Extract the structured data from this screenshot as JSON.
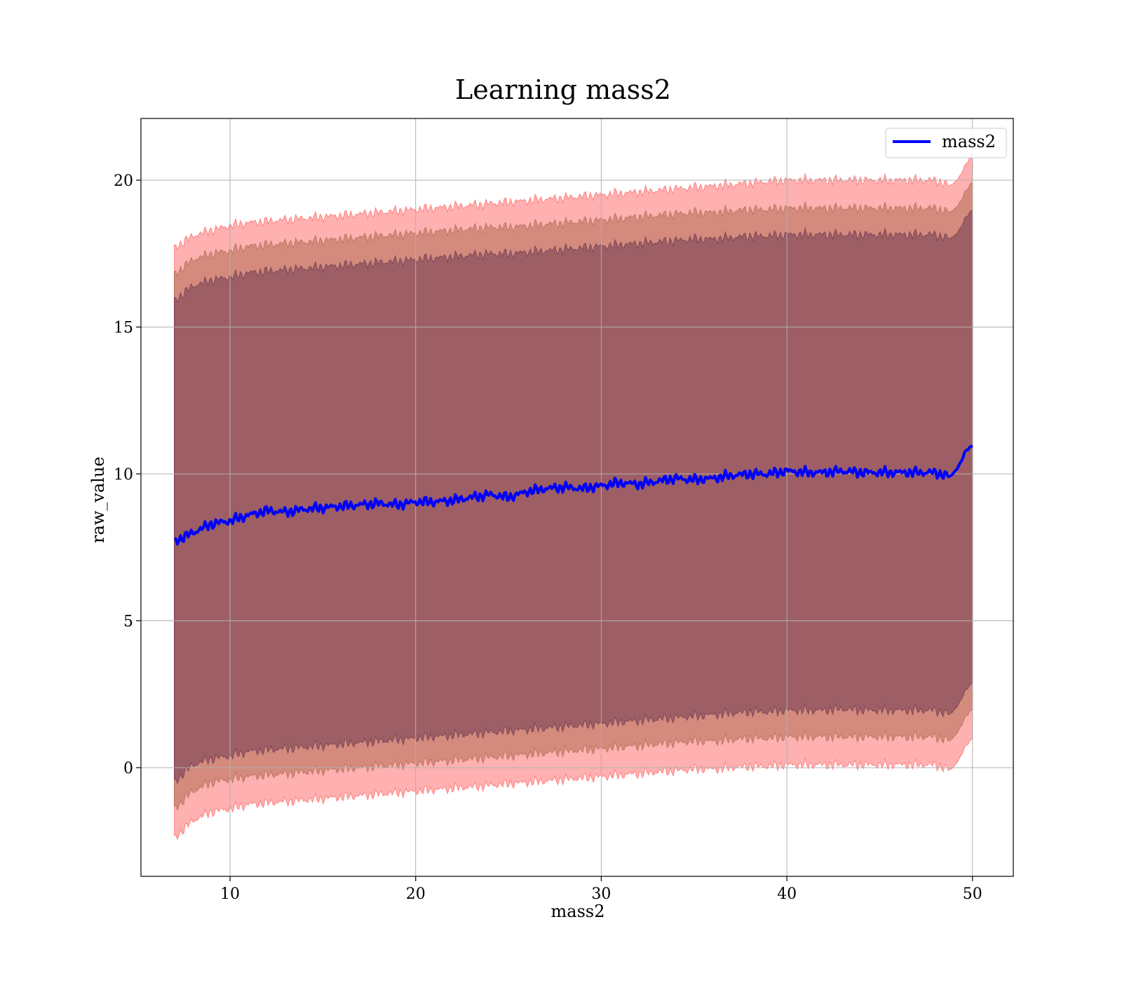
{
  "chart_data": {
    "type": "line",
    "title": "Learning mass2",
    "xlabel": "mass2",
    "ylabel": "raw_value",
    "xlim": [
      5.2,
      52.2
    ],
    "ylim": [
      -3.7,
      22.1
    ],
    "xticks": [
      10,
      20,
      30,
      40,
      50
    ],
    "yticks": [
      0,
      5,
      10,
      15,
      20
    ],
    "grid": true,
    "legend": {
      "position": "top-right",
      "entries": [
        "mass2"
      ]
    },
    "colors": {
      "line": "#0000ff",
      "band_outer": "#ff8080",
      "band_middle": "#a06040",
      "band_inner": "#5a2b4a",
      "grid": "#b0b0b0"
    },
    "series": [
      {
        "name": "mass2",
        "x": [
          7,
          8,
          9,
          10,
          11,
          12,
          13,
          14,
          15,
          16,
          17,
          18,
          19,
          20,
          21,
          22,
          23,
          24,
          25,
          26,
          27,
          28,
          29,
          30,
          31,
          32,
          33,
          34,
          35,
          36,
          37,
          38,
          39,
          40,
          41,
          42,
          43,
          44,
          45,
          46,
          47,
          48,
          48.8,
          49.3,
          49.7,
          50
        ],
        "y": [
          7.7,
          8.0,
          8.3,
          8.4,
          8.6,
          8.75,
          8.7,
          8.8,
          8.85,
          8.9,
          8.95,
          9.0,
          8.95,
          9.05,
          9.05,
          9.1,
          9.2,
          9.3,
          9.2,
          9.4,
          9.5,
          9.55,
          9.5,
          9.6,
          9.7,
          9.65,
          9.75,
          9.85,
          9.8,
          9.85,
          9.95,
          10.0,
          10.0,
          10.1,
          10.05,
          10.05,
          10.1,
          10.05,
          10.05,
          10.05,
          10.05,
          10.05,
          9.9,
          10.3,
          10.85,
          10.95
        ],
        "band_1sd": {
          "lower": [
            -0.5,
            0.1,
            0.3,
            0.4,
            0.55,
            0.6,
            0.65,
            0.7,
            0.75,
            0.8,
            0.85,
            0.9,
            0.95,
            1.0,
            1.05,
            1.1,
            1.15,
            1.2,
            1.25,
            1.3,
            1.35,
            1.4,
            1.45,
            1.5,
            1.55,
            1.6,
            1.65,
            1.7,
            1.75,
            1.8,
            1.85,
            1.9,
            1.9,
            1.95,
            1.95,
            1.95,
            2.0,
            1.95,
            1.95,
            1.95,
            1.95,
            1.95,
            1.8,
            2.2,
            2.7,
            2.9
          ],
          "upper": [
            15.9,
            16.4,
            16.6,
            16.7,
            16.85,
            16.9,
            16.95,
            17.0,
            17.05,
            17.1,
            17.15,
            17.2,
            17.25,
            17.3,
            17.35,
            17.4,
            17.45,
            17.5,
            17.5,
            17.55,
            17.6,
            17.65,
            17.7,
            17.75,
            17.8,
            17.85,
            17.9,
            17.95,
            18.0,
            18.0,
            18.05,
            18.1,
            18.1,
            18.15,
            18.15,
            18.15,
            18.15,
            18.15,
            18.15,
            18.15,
            18.15,
            18.15,
            18.0,
            18.3,
            18.8,
            19.0
          ]
        },
        "band_2sd": {
          "lower": [
            -1.4,
            -0.8,
            -0.5,
            -0.4,
            -0.3,
            -0.25,
            -0.2,
            -0.15,
            -0.1,
            -0.05,
            0.0,
            0.05,
            0.1,
            0.15,
            0.2,
            0.25,
            0.3,
            0.35,
            0.4,
            0.45,
            0.5,
            0.55,
            0.6,
            0.65,
            0.7,
            0.75,
            0.8,
            0.85,
            0.9,
            0.9,
            0.95,
            1.0,
            1.0,
            1.05,
            1.05,
            1.05,
            1.05,
            1.05,
            1.05,
            1.05,
            1.05,
            1.05,
            0.9,
            1.3,
            1.8,
            2.0
          ],
          "upper": [
            16.8,
            17.3,
            17.5,
            17.6,
            17.75,
            17.8,
            17.85,
            17.9,
            17.95,
            18.0,
            18.05,
            18.1,
            18.15,
            18.2,
            18.25,
            18.3,
            18.35,
            18.4,
            18.4,
            18.45,
            18.5,
            18.55,
            18.6,
            18.65,
            18.7,
            18.75,
            18.8,
            18.85,
            18.9,
            18.9,
            18.95,
            19.0,
            19.0,
            19.05,
            19.05,
            19.05,
            19.05,
            19.05,
            19.05,
            19.05,
            19.05,
            19.05,
            18.9,
            19.2,
            19.7,
            19.95
          ]
        },
        "band_3sd": {
          "lower": [
            -2.4,
            -1.8,
            -1.5,
            -1.4,
            -1.25,
            -1.2,
            -1.15,
            -1.1,
            -1.05,
            -1.0,
            -0.95,
            -0.9,
            -0.85,
            -0.8,
            -0.75,
            -0.7,
            -0.65,
            -0.6,
            -0.55,
            -0.5,
            -0.45,
            -0.4,
            -0.35,
            -0.3,
            -0.25,
            -0.2,
            -0.15,
            -0.1,
            -0.05,
            -0.05,
            0.0,
            0.05,
            0.05,
            0.1,
            0.1,
            0.1,
            0.1,
            0.1,
            0.1,
            0.1,
            0.1,
            0.1,
            -0.1,
            0.3,
            0.8,
            1.0
          ],
          "upper": [
            17.7,
            18.1,
            18.3,
            18.45,
            18.55,
            18.6,
            18.65,
            18.7,
            18.75,
            18.8,
            18.85,
            18.9,
            18.95,
            19.0,
            19.05,
            19.1,
            19.15,
            19.2,
            19.25,
            19.3,
            19.35,
            19.4,
            19.45,
            19.5,
            19.55,
            19.6,
            19.65,
            19.7,
            19.75,
            19.8,
            19.85,
            19.9,
            19.95,
            20.0,
            20.0,
            20.0,
            20.0,
            20.0,
            20.0,
            20.0,
            20.0,
            20.0,
            19.8,
            20.1,
            20.6,
            20.95
          ]
        }
      }
    ]
  }
}
